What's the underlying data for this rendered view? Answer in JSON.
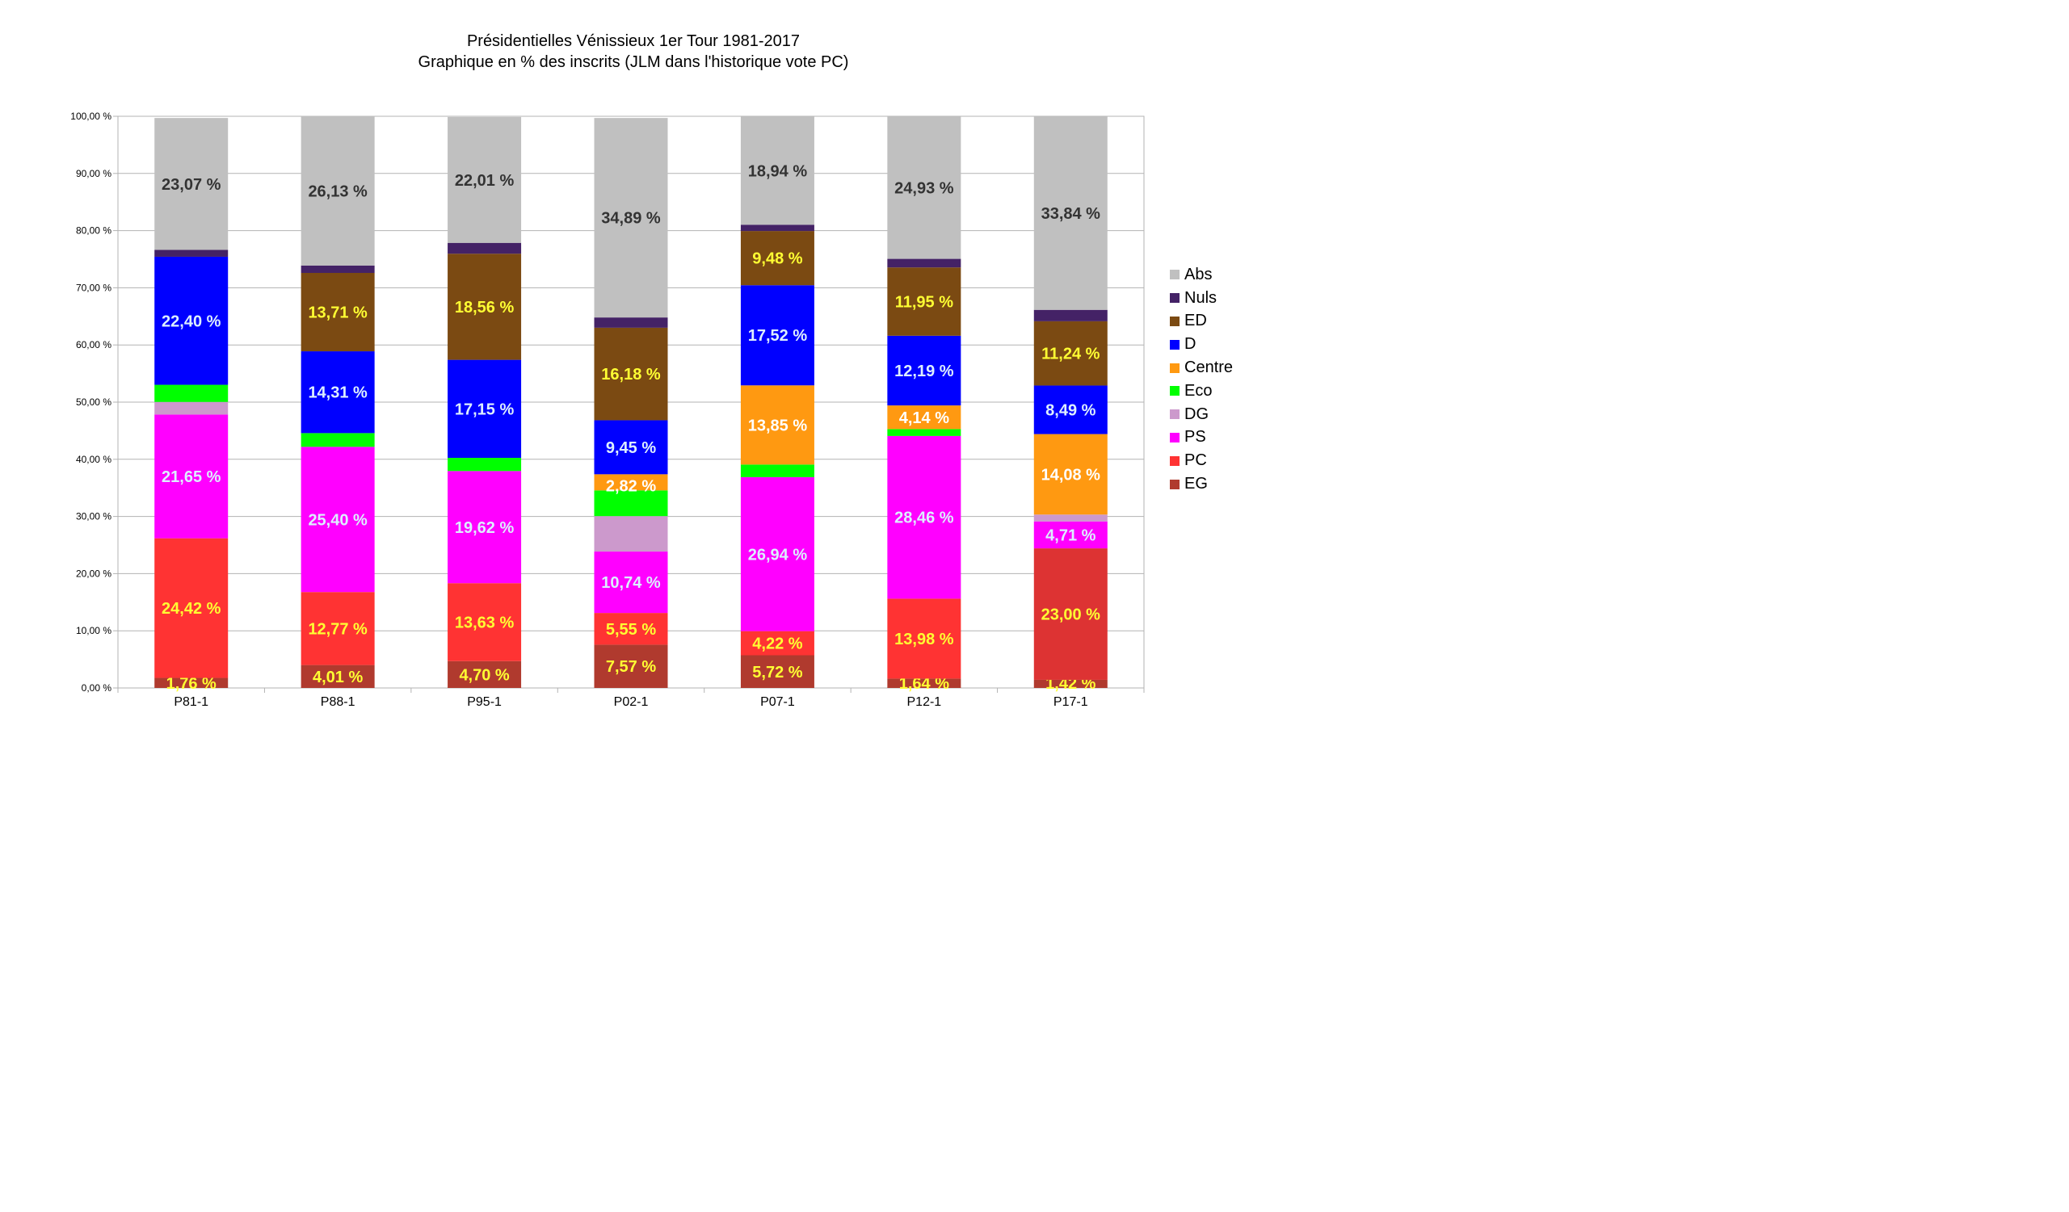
{
  "chart_data": {
    "type": "bar",
    "stacked": true,
    "title": "Présidentielles Vénissieux 1er Tour 1981-2017",
    "subtitle": "Graphique en % des inscrits (JLM dans l'historique vote PC)",
    "categories": [
      "P81-1",
      "P88-1",
      "P95-1",
      "P02-1",
      "P07-1",
      "P12-1",
      "P17-1"
    ],
    "ylim": [
      0,
      100
    ],
    "yticks": [
      0,
      10,
      20,
      30,
      40,
      50,
      60,
      70,
      80,
      90,
      100
    ],
    "ytick_labels": [
      "0,00 %",
      "10,00 %",
      "20,00 %",
      "30,00 %",
      "40,00 %",
      "50,00 %",
      "60,00 %",
      "70,00 %",
      "80,00 %",
      "90,00 %",
      "100,00 %"
    ],
    "grid": true,
    "legend_position": "right",
    "series": [
      {
        "name": "EG",
        "color": "#b03a2e",
        "label_color": "#ffff33",
        "values": [
          1.76,
          4.01,
          4.7,
          7.57,
          5.72,
          1.64,
          1.42
        ],
        "labels": [
          "1,76 %",
          "4,01 %",
          "4,70 %",
          "7,57 %",
          "5,72 %",
          "1,64 %",
          "1,42 %"
        ]
      },
      {
        "name": "PC",
        "color": "#ff3333",
        "label_color": "#ffff33",
        "values": [
          24.42,
          12.77,
          13.63,
          5.55,
          4.22,
          13.98,
          23.0
        ],
        "labels": [
          "24,42 %",
          "12,77 %",
          "13,63 %",
          "5,55 %",
          "4,22 %",
          "13,98 %",
          "23,00 %"
        ],
        "colors": [
          "#ff3333",
          "#ff3333",
          "#ff3333",
          "#ff3333",
          "#ff3333",
          "#ff3333",
          "#dd3333"
        ]
      },
      {
        "name": "PS",
        "color": "#ff00ff",
        "label_color": "#ddeeff",
        "values": [
          21.65,
          25.4,
          19.62,
          10.74,
          26.94,
          28.46,
          4.71
        ],
        "labels": [
          "21,65 %",
          "25,40 %",
          "19,62 %",
          "10,74 %",
          "26,94 %",
          "28,46 %",
          "4,71 %"
        ]
      },
      {
        "name": "DG",
        "color": "#cc99cc",
        "label_color": "#ffffff",
        "values": [
          2.2,
          0,
          0,
          6.2,
          0,
          0,
          1.2
        ],
        "labels": [
          "",
          "",
          "",
          "",
          "",
          "",
          ""
        ]
      },
      {
        "name": "Eco",
        "color": "#00ff00",
        "label_color": "#ffffff",
        "values": [
          3.0,
          2.4,
          2.3,
          4.5,
          2.2,
          1.2,
          0
        ],
        "labels": [
          "",
          "",
          "",
          "",
          "",
          "",
          ""
        ]
      },
      {
        "name": "Centre",
        "color": "#ff9911",
        "label_color": "#ffffff",
        "values": [
          0,
          0,
          0,
          2.82,
          13.85,
          4.14,
          14.08
        ],
        "labels": [
          "",
          "",
          "",
          "2,82 %",
          "13,85 %",
          "4,14 %",
          "14,08 %"
        ]
      },
      {
        "name": "D",
        "color": "#0000ff",
        "label_color": "#ddeeff",
        "values": [
          22.4,
          14.31,
          17.15,
          9.45,
          17.52,
          12.19,
          8.49
        ],
        "labels": [
          "22,40 %",
          "14,31 %",
          "17,15 %",
          "9,45 %",
          "17,52 %",
          "12,19 %",
          "8,49 %"
        ]
      },
      {
        "name": "ED",
        "color": "#7b4a12",
        "label_color": "#ffff33",
        "values": [
          0,
          13.71,
          18.56,
          16.18,
          9.48,
          11.95,
          11.24
        ],
        "labels": [
          "",
          "13,71 %",
          "18,56 %",
          "16,18 %",
          "9,48 %",
          "11,95 %",
          "11,24 %"
        ]
      },
      {
        "name": "Nuls",
        "color": "#442266",
        "label_color": "#ffffff",
        "values": [
          1.2,
          1.3,
          1.9,
          1.8,
          1.1,
          1.5,
          2.0
        ],
        "labels": [
          "",
          "",
          "",
          "",
          "",
          "",
          ""
        ]
      },
      {
        "name": "Abs",
        "color": "#c0c0c0",
        "label_color": "#333333",
        "values": [
          23.07,
          26.13,
          22.01,
          34.89,
          18.94,
          24.93,
          33.84
        ],
        "labels": [
          "23,07 %",
          "26,13 %",
          "22,01 %",
          "34,89 %",
          "18,94 %",
          "24,93 %",
          "33,84 %"
        ]
      }
    ],
    "legend_order": [
      "Abs",
      "Nuls",
      "ED",
      "D",
      "Centre",
      "Eco",
      "DG",
      "PS",
      "PC",
      "EG"
    ]
  }
}
